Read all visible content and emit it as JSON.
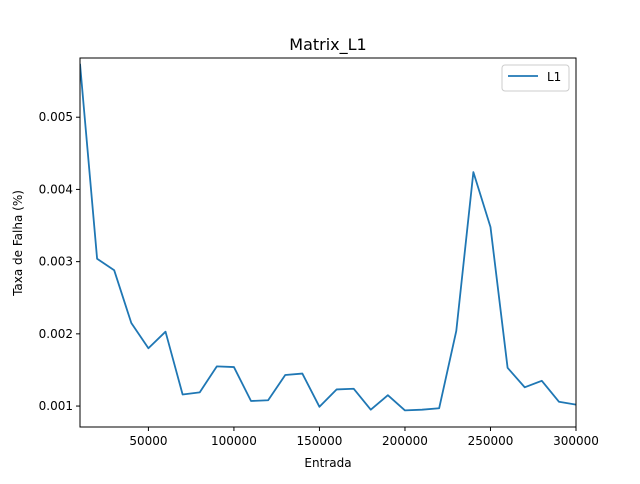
{
  "chart_data": {
    "type": "line",
    "title": "Matrix_L1",
    "xlabel": "Entrada",
    "ylabel": "Taxa de Falha (%)",
    "xlim": [
      10000,
      300000
    ],
    "ylim": [
      0.00071,
      0.00582
    ],
    "xticks": [
      50000,
      100000,
      150000,
      200000,
      250000,
      300000
    ],
    "yticks": [
      0.001,
      0.002,
      0.003,
      0.004,
      0.005
    ],
    "xtick_labels": [
      "50000",
      "100000",
      "150000",
      "200000",
      "250000",
      "300000"
    ],
    "ytick_labels": [
      "0.001",
      "0.002",
      "0.003",
      "0.004",
      "0.005"
    ],
    "legend_position": "upper right",
    "grid": false,
    "series": [
      {
        "name": "L1",
        "color": "#1f77b4",
        "x": [
          10000,
          20000,
          30000,
          40000,
          50000,
          60000,
          70000,
          80000,
          90000,
          100000,
          110000,
          120000,
          130000,
          140000,
          150000,
          160000,
          170000,
          180000,
          190000,
          200000,
          210000,
          220000,
          230000,
          240000,
          250000,
          260000,
          270000,
          280000,
          290000,
          300000
        ],
        "y": [
          0.00574,
          0.00304,
          0.00288,
          0.00215,
          0.0018,
          0.00203,
          0.00116,
          0.00119,
          0.00155,
          0.00154,
          0.00107,
          0.00108,
          0.00143,
          0.00145,
          0.00099,
          0.00123,
          0.00124,
          0.00095,
          0.00115,
          0.00094,
          0.00095,
          0.00097,
          0.00204,
          0.00424,
          0.00348,
          0.00153,
          0.00126,
          0.00135,
          0.00106,
          0.00102
        ]
      }
    ]
  }
}
